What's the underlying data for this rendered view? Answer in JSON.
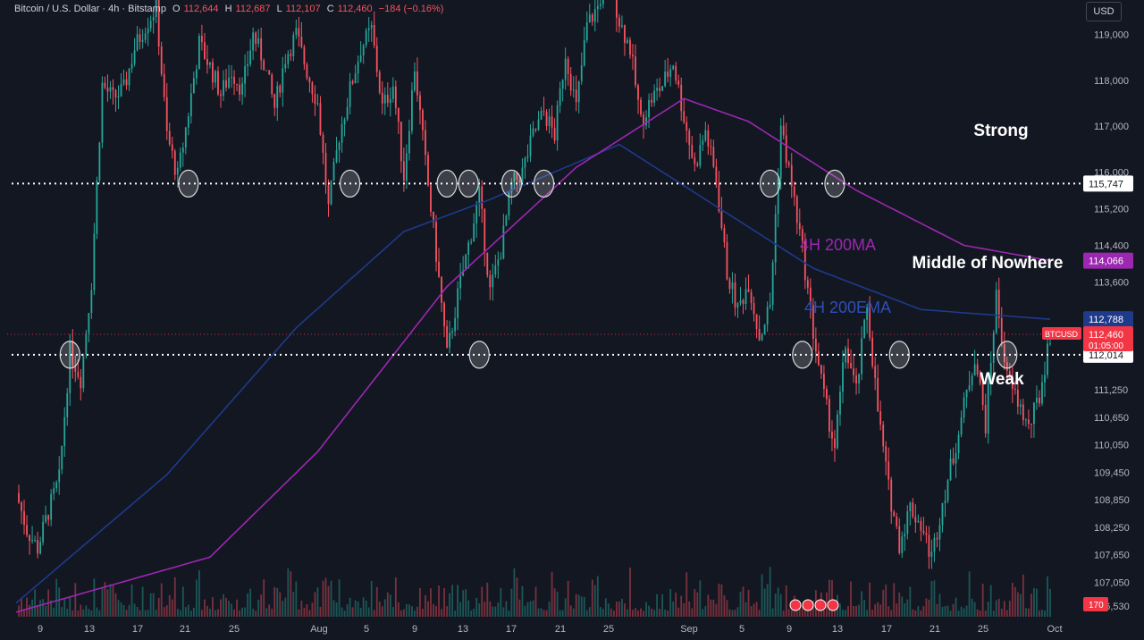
{
  "header": {
    "symbol": "Bitcoin / U.S. Dollar · 4h · Bitstamp",
    "o_label": "O",
    "o": "112,644",
    "h_label": "H",
    "h": "112,687",
    "l_label": "L",
    "l": "112,107",
    "c_label": "C",
    "c": "112,460",
    "change": "−184 (−0.16%)"
  },
  "currency_button": "USD",
  "colors": {
    "background": "#131722",
    "up": "#26a69a",
    "down": "#f7525f",
    "ma": "#9c27b0",
    "ema": "#1e3a8a",
    "level_line": "#ffffff",
    "price_label_red": "#f23645",
    "ma_label_bg": "#9c27b0",
    "ema_label_bg": "#1e3a8a"
  },
  "chart_data": {
    "type": "candlestick",
    "timeframe": "4h",
    "ylim": [
      106300,
      119750
    ],
    "y_ticks": [
      "119,000",
      "118,000",
      "117,000",
      "116,000",
      "115,200",
      "114,400",
      "113,600",
      "111,250",
      "110,650",
      "110,050",
      "109,450",
      "108,850",
      "108,250",
      "107,650",
      "107,050",
      "106,530"
    ],
    "x_ticks": [
      "9",
      "13",
      "17",
      "21",
      "25",
      "Aug",
      "5",
      "9",
      "13",
      "17",
      "21",
      "25",
      "Sep",
      "5",
      "9",
      "13",
      "17",
      "21",
      "25",
      "Oct"
    ],
    "price_path": [
      [
        0,
        109000
      ],
      [
        1,
        108200
      ],
      [
        2,
        107800
      ],
      [
        3,
        108600
      ],
      [
        4,
        109300
      ],
      [
        5,
        112100
      ],
      [
        6,
        111500
      ],
      [
        7,
        113600
      ],
      [
        8,
        117900
      ],
      [
        9,
        117600
      ],
      [
        10,
        117800
      ],
      [
        11,
        118700
      ],
      [
        12,
        119200
      ],
      [
        13,
        119600
      ],
      [
        14,
        116800
      ],
      [
        15,
        115900
      ],
      [
        16,
        117300
      ],
      [
        17,
        118800
      ],
      [
        18,
        118300
      ],
      [
        19,
        117700
      ],
      [
        20,
        118200
      ],
      [
        21,
        117800
      ],
      [
        22,
        119000
      ],
      [
        23,
        118400
      ],
      [
        24,
        117400
      ],
      [
        25,
        118500
      ],
      [
        26,
        119000
      ],
      [
        27,
        118200
      ],
      [
        28,
        117500
      ],
      [
        29,
        115200
      ],
      [
        30,
        116800
      ],
      [
        31,
        117800
      ],
      [
        32,
        118700
      ],
      [
        33,
        119100
      ],
      [
        34,
        117400
      ],
      [
        35,
        117900
      ],
      [
        36,
        115900
      ],
      [
        37,
        118300
      ],
      [
        38,
        116200
      ],
      [
        39,
        114200
      ],
      [
        40,
        112000
      ],
      [
        41,
        113300
      ],
      [
        42,
        114400
      ],
      [
        43,
        115500
      ],
      [
        44,
        113400
      ],
      [
        45,
        114300
      ],
      [
        46,
        115700
      ],
      [
        47,
        116000
      ],
      [
        48,
        116800
      ],
      [
        49,
        117300
      ],
      [
        50,
        116800
      ],
      [
        51,
        118600
      ],
      [
        52,
        117400
      ],
      [
        53,
        119200
      ],
      [
        54,
        119600
      ],
      [
        55,
        120400
      ],
      [
        56,
        119300
      ],
      [
        57,
        118700
      ],
      [
        58,
        117100
      ],
      [
        59,
        117600
      ],
      [
        60,
        117900
      ],
      [
        61,
        118400
      ],
      [
        62,
        117200
      ],
      [
        63,
        116100
      ],
      [
        64,
        116900
      ],
      [
        65,
        115800
      ],
      [
        66,
        113800
      ],
      [
        67,
        113000
      ],
      [
        68,
        113600
      ],
      [
        69,
        112400
      ],
      [
        70,
        113100
      ],
      [
        71,
        117000
      ],
      [
        72,
        115700
      ],
      [
        73,
        114300
      ],
      [
        74,
        112500
      ],
      [
        75,
        111100
      ],
      [
        76,
        110000
      ],
      [
        77,
        112200
      ],
      [
        78,
        111200
      ],
      [
        79,
        113100
      ],
      [
        80,
        110800
      ],
      [
        81,
        109100
      ],
      [
        82,
        107900
      ],
      [
        83,
        108700
      ],
      [
        84,
        108300
      ],
      [
        85,
        107600
      ],
      [
        86,
        108800
      ],
      [
        87,
        109800
      ],
      [
        88,
        110900
      ],
      [
        89,
        112000
      ],
      [
        90,
        110500
      ],
      [
        91,
        113300
      ],
      [
        92,
        111500
      ],
      [
        93,
        111000
      ],
      [
        94,
        110400
      ],
      [
        95,
        111100
      ],
      [
        96,
        112460
      ]
    ],
    "ma_200": [
      [
        0,
        106400
      ],
      [
        18,
        107600
      ],
      [
        28,
        109900
      ],
      [
        40,
        113500
      ],
      [
        52,
        116100
      ],
      [
        62,
        117600
      ],
      [
        68,
        117100
      ],
      [
        78,
        115600
      ],
      [
        88,
        114400
      ],
      [
        96,
        114066
      ]
    ],
    "ema_200": [
      [
        0,
        106600
      ],
      [
        14,
        109400
      ],
      [
        26,
        112600
      ],
      [
        36,
        114700
      ],
      [
        44,
        115400
      ],
      [
        56,
        116600
      ],
      [
        64,
        115400
      ],
      [
        74,
        113900
      ],
      [
        84,
        113000
      ],
      [
        96,
        112788
      ]
    ],
    "levels": [
      {
        "name": "resistance",
        "value": 115747,
        "label": "115,747"
      },
      {
        "name": "support",
        "value": 112014,
        "label": "112,014"
      }
    ],
    "last_price": {
      "symbol": "BTCUSD",
      "value": 112460,
      "label": "112,460",
      "countdown": "01:05:00"
    },
    "ma_last": {
      "value": 114066,
      "label": "114,066"
    },
    "ema_last": {
      "value": 112788,
      "label": "112,788"
    },
    "volume_last": "170",
    "touches": [
      {
        "level": "resistance",
        "x": 16
      },
      {
        "level": "resistance",
        "x": 31
      },
      {
        "level": "resistance",
        "x": 40
      },
      {
        "level": "resistance",
        "x": 42
      },
      {
        "level": "resistance",
        "x": 46
      },
      {
        "level": "resistance",
        "x": 49
      },
      {
        "level": "resistance",
        "x": 70
      },
      {
        "level": "resistance",
        "x": 76
      },
      {
        "level": "support",
        "x": 5
      },
      {
        "level": "support",
        "x": 43
      },
      {
        "level": "support",
        "x": 73
      },
      {
        "level": "support",
        "x": 82
      },
      {
        "level": "support",
        "x": 92
      }
    ]
  },
  "annotations": {
    "strong": "Strong",
    "middle": "Middle of Nowhere",
    "weak": "Weak",
    "ma_label": "4H 200MA",
    "ema_label": "4H 200EMA"
  }
}
